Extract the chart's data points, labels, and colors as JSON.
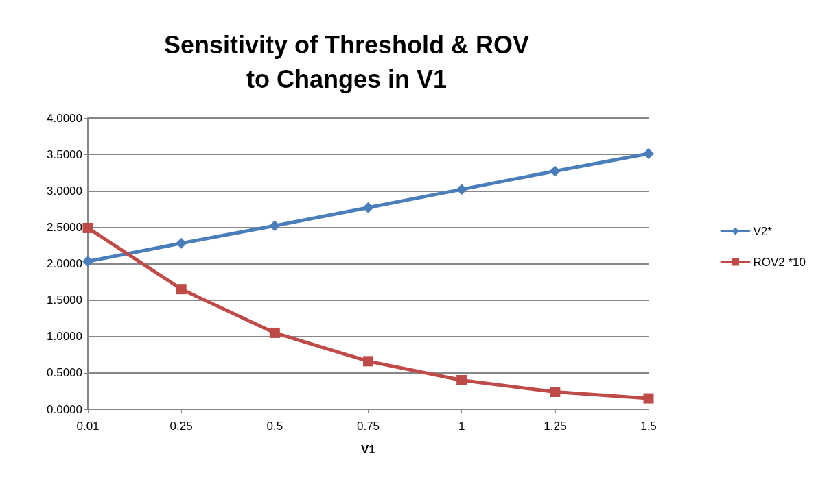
{
  "chart_data": {
    "type": "line",
    "title": "Sensitivity of Threshold & ROV\nto Changes in V1",
    "xlabel": "V1",
    "categories": [
      "0.01",
      "0.25",
      "0.5",
      "0.75",
      "1",
      "1.25",
      "1.5"
    ],
    "series": [
      {
        "name": "V2*",
        "color": "#4a7ebb",
        "marker": "diamond",
        "values": [
          2.03,
          2.28,
          2.52,
          2.77,
          3.02,
          3.27,
          3.51
        ]
      },
      {
        "name": "ROV2 *10",
        "color": "#be4b48",
        "marker": "square",
        "values": [
          2.49,
          1.65,
          1.05,
          0.66,
          0.4,
          0.24,
          0.15
        ]
      }
    ],
    "ylim": [
      0,
      4
    ],
    "yticks": [
      {
        "value": 0,
        "label": "0.0000"
      },
      {
        "value": 0.5,
        "label": "0.5000"
      },
      {
        "value": 1,
        "label": "1.0000"
      },
      {
        "value": 1.5,
        "label": "1.5000"
      },
      {
        "value": 2,
        "label": "2.0000"
      },
      {
        "value": 2.5,
        "label": "2.5000"
      },
      {
        "value": 3,
        "label": "3.0000"
      },
      {
        "value": 3.5,
        "label": "3.5000"
      },
      {
        "value": 4,
        "label": "4.0000"
      }
    ],
    "grid": "y",
    "legend": "right",
    "line_style": "solid"
  }
}
